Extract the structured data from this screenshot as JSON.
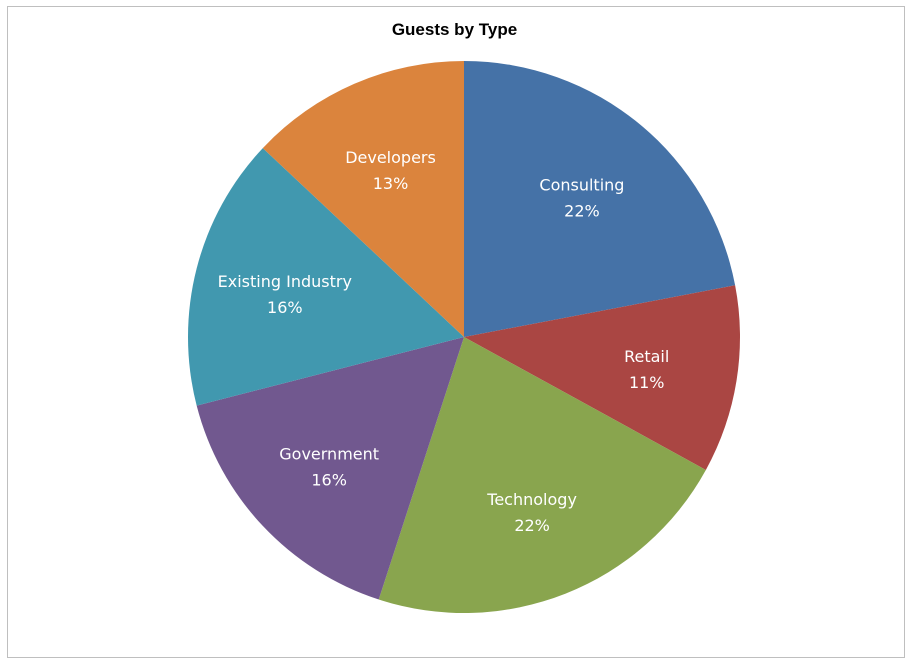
{
  "chart_data": {
    "type": "pie",
    "title": "Guests by Type",
    "slices": [
      {
        "label": "Consulting",
        "value": 22,
        "percent_label": "22%",
        "color": "#4572A7"
      },
      {
        "label": "Retail",
        "value": 11,
        "percent_label": "11%",
        "color": "#AA4643"
      },
      {
        "label": "Technology",
        "value": 22,
        "percent_label": "22%",
        "color": "#89A54E"
      },
      {
        "label": "Government",
        "value": 16,
        "percent_label": "16%",
        "color": "#71588F"
      },
      {
        "label": "Existing Industry",
        "value": 16,
        "percent_label": "16%",
        "color": "#4198AF"
      },
      {
        "label": "Developers",
        "value": 13,
        "percent_label": "13%",
        "color": "#DB843D"
      }
    ],
    "start_angle": "12 o'clock",
    "direction": "clockwise",
    "legend": "none",
    "data_labels": "inside"
  }
}
